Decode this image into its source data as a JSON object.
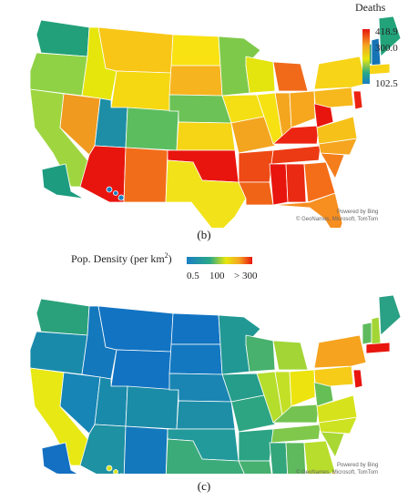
{
  "panel_b": {
    "caption": "(b)",
    "legend": {
      "title": "Deaths",
      "max_label": "418.9",
      "mid_label": "300.0",
      "min_label": "102.5",
      "max": 418.9,
      "mid": 300.0,
      "min": 102.5
    },
    "credit_powered": "Powered by Bing",
    "credit_sources": "© GeoNames, Microsoft, TomTom"
  },
  "panel_c": {
    "caption": "(c)",
    "legend": {
      "title_main": "Pop.  Density (per km",
      "title_sup": "2",
      "title_close": ")",
      "low_label": "0.5",
      "mid_label": "100",
      "high_label": "> 300",
      "low": 0.5,
      "mid": 100,
      "high": 300
    },
    "credit_powered": "Powered by Bing",
    "credit_sources": "© GeoNames, Microsoft, TomTom"
  },
  "colors": {
    "scale_low": "#1a7fc4",
    "scale_midlow": "#2aa889",
    "scale_mid": "#e6e60c",
    "scale_midhigh": "#f5a623",
    "scale_high": "#e8150e"
  }
}
